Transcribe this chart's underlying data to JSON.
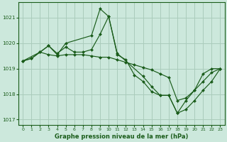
{
  "title": "Graphe pression niveau de la mer (hPa)",
  "background_color": "#cce8dc",
  "grid_color": "#aaccbb",
  "line_color": "#1a5c1a",
  "xlim": [
    -0.5,
    23.5
  ],
  "ylim": [
    1016.8,
    1021.6
  ],
  "yticks": [
    1017,
    1018,
    1019,
    1020,
    1021
  ],
  "xticks": [
    0,
    1,
    2,
    3,
    4,
    5,
    6,
    7,
    8,
    9,
    10,
    11,
    12,
    13,
    14,
    15,
    16,
    17,
    18,
    19,
    20,
    21,
    22,
    23
  ],
  "series": [
    {
      "x": [
        0,
        1,
        2,
        3,
        4,
        5,
        6,
        7,
        8,
        9,
        10,
        11,
        12,
        13,
        14,
        15,
        16,
        17,
        18,
        19,
        20,
        21,
        22,
        23
      ],
      "y": [
        1019.3,
        1019.4,
        1019.65,
        1019.55,
        1019.5,
        1019.55,
        1019.55,
        1019.55,
        1019.5,
        1019.45,
        1019.45,
        1019.35,
        1019.25,
        1019.15,
        1019.05,
        1018.95,
        1018.8,
        1018.65,
        1017.75,
        1017.85,
        1018.15,
        1018.8,
        1019.0,
        1019.0
      ]
    },
    {
      "x": [
        0,
        1,
        2,
        3,
        4,
        5,
        6,
        7,
        8,
        9,
        10,
        11,
        12,
        13,
        14,
        15,
        16,
        17,
        18,
        19,
        20,
        21,
        22,
        23
      ],
      "y": [
        1019.3,
        1019.4,
        1019.65,
        1019.9,
        1019.6,
        1019.85,
        1019.65,
        1019.65,
        1019.75,
        1020.35,
        1021.05,
        1019.55,
        1019.35,
        1018.75,
        1018.5,
        1018.1,
        1017.95,
        1017.95,
        1017.25,
        1017.75,
        1018.15,
        1018.5,
        1018.85,
        1019.0
      ]
    },
    {
      "x": [
        0,
        2,
        3,
        4,
        5,
        8,
        9,
        10,
        11,
        14,
        15,
        16,
        17,
        18,
        19,
        20,
        21,
        22,
        23
      ],
      "y": [
        1019.3,
        1019.65,
        1019.9,
        1019.55,
        1020.0,
        1020.3,
        1021.35,
        1021.05,
        1019.6,
        1018.7,
        1018.3,
        1017.95,
        1017.95,
        1017.25,
        1017.4,
        1017.75,
        1018.15,
        1018.5,
        1019.0
      ]
    }
  ]
}
